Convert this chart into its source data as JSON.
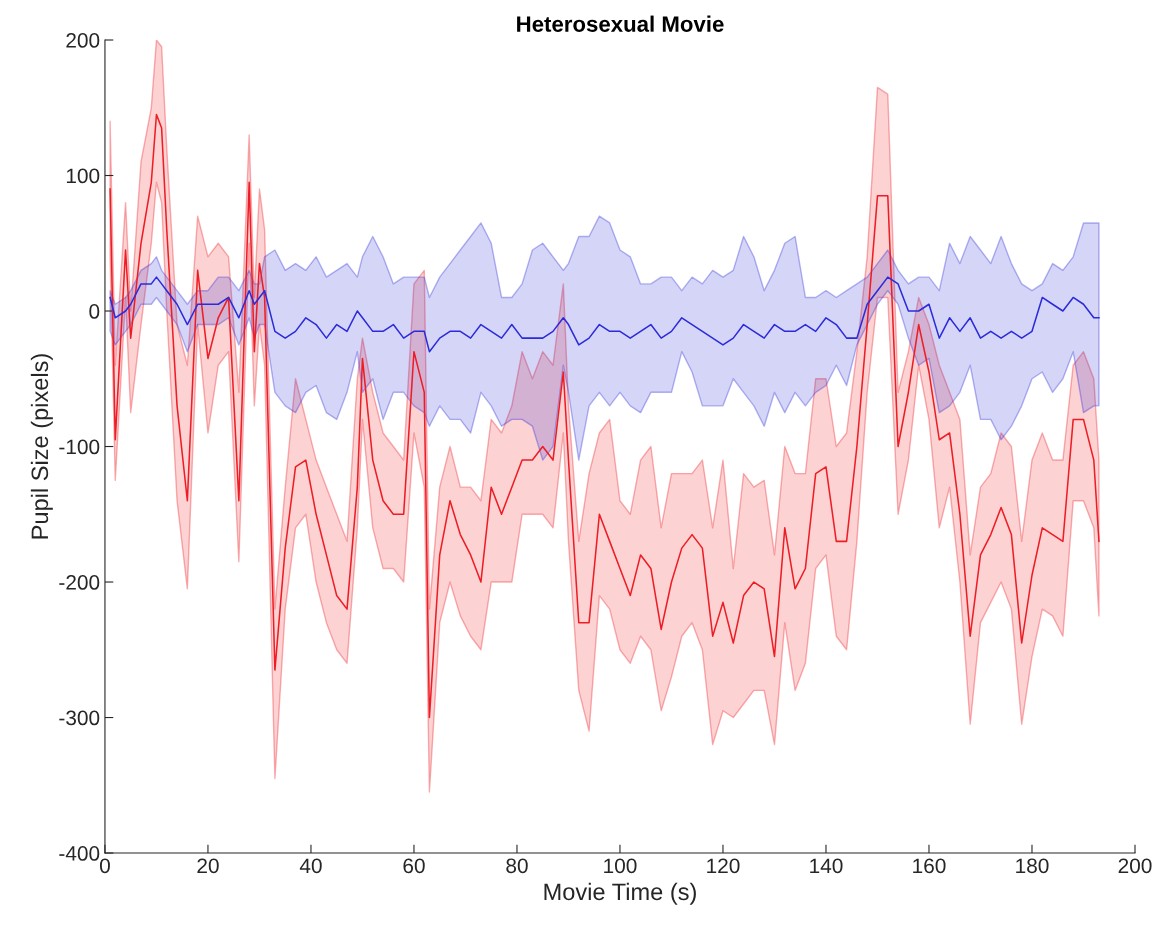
{
  "chart_data": {
    "type": "line",
    "title": "Heterosexual Movie",
    "xlabel": "Movie Time (s)",
    "ylabel": "Pupil Size (pixels)",
    "x": [
      1,
      2,
      4,
      5,
      7,
      9,
      10,
      11,
      12,
      14,
      16,
      18,
      20,
      22,
      24,
      26,
      28,
      29,
      30,
      31,
      33,
      35,
      37,
      39,
      41,
      43,
      45,
      47,
      49,
      50,
      52,
      54,
      56,
      58,
      60,
      62,
      63,
      65,
      67,
      69,
      71,
      73,
      75,
      77,
      79,
      81,
      83,
      85,
      87,
      89,
      90,
      92,
      94,
      96,
      98,
      100,
      102,
      104,
      106,
      108,
      110,
      112,
      114,
      116,
      118,
      120,
      122,
      124,
      126,
      128,
      130,
      132,
      134,
      136,
      138,
      140,
      142,
      144,
      146,
      148,
      150,
      152,
      154,
      156,
      158,
      160,
      162,
      164,
      166,
      168,
      170,
      172,
      174,
      176,
      178,
      180,
      182,
      184,
      186,
      188,
      190,
      192,
      193
    ],
    "series": [
      {
        "color": "#ee1c24",
        "values": [
          90,
          -95,
          45,
          -20,
          50,
          95,
          145,
          135,
          60,
          -70,
          -140,
          30,
          -35,
          -5,
          10,
          -140,
          95,
          -30,
          35,
          10,
          -265,
          -175,
          -115,
          -110,
          -150,
          -180,
          -210,
          -220,
          -130,
          -35,
          -110,
          -140,
          -150,
          -150,
          -30,
          -60,
          -300,
          -180,
          -140,
          -165,
          -180,
          -200,
          -130,
          -150,
          -130,
          -110,
          -110,
          -100,
          -110,
          -45,
          -110,
          -230,
          -230,
          -150,
          -170,
          -190,
          -210,
          -180,
          -190,
          -235,
          -200,
          -175,
          -165,
          -175,
          -240,
          -215,
          -245,
          -210,
          -200,
          -205,
          -255,
          -160,
          -205,
          -190,
          -120,
          -115,
          -170,
          -170,
          -100,
          -10,
          85,
          85,
          -100,
          -60,
          -10,
          -45,
          -95,
          -90,
          -150,
          -240,
          -180,
          -165,
          -145,
          -165,
          -245,
          -195,
          -160,
          -165,
          -170,
          -80,
          -80,
          -110,
          -170
        ],
        "upper": [
          140,
          -40,
          80,
          0,
          110,
          150,
          200,
          195,
          120,
          -10,
          -40,
          70,
          40,
          50,
          40,
          -60,
          130,
          10,
          90,
          60,
          -220,
          -130,
          -50,
          -80,
          -110,
          -130,
          -150,
          -170,
          -50,
          -20,
          -60,
          -90,
          -100,
          -110,
          20,
          30,
          -220,
          -130,
          -100,
          -130,
          -130,
          -140,
          -80,
          -90,
          -70,
          -30,
          -50,
          -30,
          -40,
          20,
          -70,
          -170,
          -120,
          -90,
          -80,
          -140,
          -150,
          -110,
          -100,
          -160,
          -120,
          -120,
          -120,
          -110,
          -160,
          -110,
          -190,
          -120,
          -130,
          -125,
          -180,
          -100,
          -120,
          -120,
          -50,
          -50,
          -100,
          -90,
          -30,
          40,
          165,
          160,
          -60,
          -30,
          10,
          -10,
          -40,
          -60,
          -80,
          -180,
          -130,
          -120,
          -90,
          -100,
          -170,
          -110,
          -90,
          -110,
          -110,
          -40,
          -30,
          -50,
          -110
        ],
        "lower": [
          40,
          -125,
          10,
          -75,
          -10,
          50,
          95,
          80,
          0,
          -140,
          -205,
          -10,
          -90,
          -40,
          -30,
          -185,
          50,
          -70,
          -10,
          -40,
          -345,
          -220,
          -160,
          -150,
          -200,
          -230,
          -250,
          -260,
          -160,
          -80,
          -160,
          -190,
          -190,
          -200,
          -90,
          -130,
          -355,
          -230,
          -200,
          -225,
          -240,
          -250,
          -200,
          -200,
          -200,
          -150,
          -150,
          -150,
          -160,
          -90,
          -170,
          -280,
          -310,
          -210,
          -220,
          -250,
          -260,
          -240,
          -250,
          -295,
          -270,
          -240,
          -230,
          -250,
          -320,
          -295,
          -300,
          -290,
          -280,
          -280,
          -320,
          -230,
          -280,
          -260,
          -190,
          -180,
          -240,
          -250,
          -170,
          -60,
          10,
          10,
          -150,
          -110,
          -40,
          -80,
          -160,
          -130,
          -200,
          -305,
          -230,
          -215,
          -200,
          -220,
          -305,
          -255,
          -220,
          -225,
          -240,
          -140,
          -140,
          -160,
          -225
        ]
      },
      {
        "color": "#2b2bd9",
        "values": [
          10,
          -5,
          0,
          5,
          20,
          20,
          25,
          20,
          15,
          5,
          -10,
          5,
          5,
          5,
          10,
          -5,
          15,
          5,
          10,
          15,
          -15,
          -20,
          -15,
          -5,
          -10,
          -20,
          -10,
          -15,
          0,
          -5,
          -15,
          -15,
          -10,
          -20,
          -15,
          -15,
          -30,
          -20,
          -15,
          -15,
          -20,
          -10,
          -15,
          -20,
          -10,
          -20,
          -20,
          -20,
          -15,
          -5,
          -10,
          -25,
          -20,
          -10,
          -15,
          -15,
          -20,
          -15,
          -10,
          -20,
          -15,
          -5,
          -10,
          -15,
          -20,
          -25,
          -20,
          -10,
          -15,
          -20,
          -10,
          -15,
          -15,
          -10,
          -15,
          -5,
          -10,
          -20,
          -20,
          5,
          15,
          25,
          20,
          0,
          0,
          5,
          -20,
          -5,
          -15,
          -5,
          -20,
          -15,
          -20,
          -15,
          -20,
          -15,
          10,
          5,
          0,
          10,
          5,
          -5,
          -5
        ],
        "upper": [
          15,
          5,
          10,
          15,
          30,
          35,
          40,
          30,
          25,
          15,
          5,
          15,
          15,
          25,
          25,
          15,
          30,
          20,
          20,
          40,
          45,
          30,
          35,
          30,
          40,
          25,
          30,
          35,
          25,
          40,
          55,
          40,
          20,
          25,
          25,
          25,
          10,
          25,
          35,
          45,
          55,
          65,
          50,
          10,
          10,
          20,
          45,
          50,
          40,
          30,
          35,
          55,
          55,
          70,
          65,
          45,
          40,
          20,
          20,
          25,
          25,
          15,
          25,
          20,
          30,
          25,
          30,
          55,
          40,
          15,
          30,
          50,
          55,
          10,
          10,
          15,
          10,
          15,
          20,
          25,
          35,
          45,
          30,
          20,
          25,
          25,
          15,
          50,
          35,
          55,
          45,
          35,
          55,
          35,
          20,
          15,
          20,
          35,
          30,
          40,
          65,
          65,
          65
        ],
        "lower": [
          -15,
          -25,
          -15,
          -10,
          5,
          5,
          10,
          5,
          0,
          -10,
          -30,
          -10,
          -10,
          -10,
          -5,
          -25,
          -5,
          -20,
          -10,
          -10,
          -60,
          -70,
          -75,
          -60,
          -55,
          -75,
          -80,
          -60,
          -30,
          -60,
          -50,
          -80,
          -60,
          -60,
          -70,
          -75,
          -85,
          -70,
          -80,
          -80,
          -90,
          -60,
          -70,
          -85,
          -80,
          -80,
          -85,
          -110,
          -100,
          -40,
          -60,
          -110,
          -70,
          -60,
          -70,
          -60,
          -70,
          -75,
          -60,
          -60,
          -60,
          -30,
          -45,
          -70,
          -70,
          -70,
          -50,
          -60,
          -70,
          -85,
          -60,
          -75,
          -60,
          -70,
          -60,
          -55,
          -40,
          -55,
          -25,
          -10,
          5,
          15,
          5,
          -20,
          -40,
          -35,
          -75,
          -70,
          -60,
          -40,
          -80,
          -80,
          -95,
          -85,
          -70,
          -50,
          -45,
          -60,
          -50,
          -30,
          -75,
          -70,
          -70
        ]
      }
    ],
    "xlim": [
      0,
      200
    ],
    "xticks": [
      0,
      20,
      40,
      60,
      80,
      100,
      120,
      140,
      160,
      180,
      200
    ],
    "ylim": [
      -400,
      200
    ],
    "yticks": [
      -400,
      -300,
      -200,
      -100,
      0,
      100,
      200
    ],
    "grid": false,
    "marker": "none",
    "line_style": "solid"
  }
}
